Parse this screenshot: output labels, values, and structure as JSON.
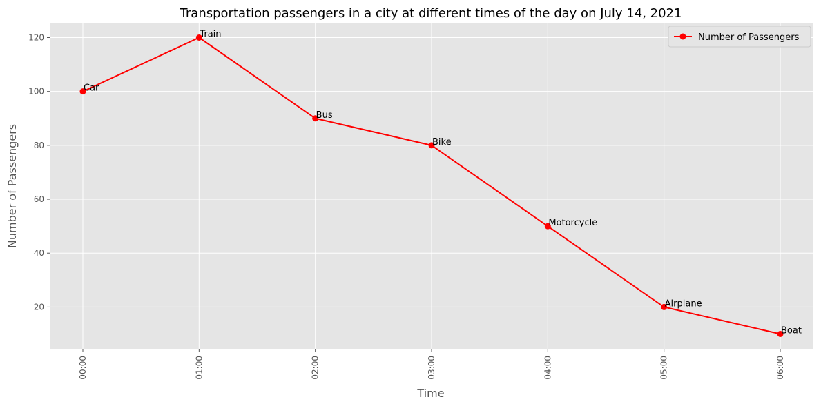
{
  "chart_data": {
    "type": "line",
    "title": "Transportation passengers in a city at different times of the day on July 14, 2021",
    "xlabel": "Time",
    "ylabel": "Number of Passengers",
    "categories": [
      "00:00",
      "01:00",
      "02:00",
      "03:00",
      "04:00",
      "05:00",
      "06:00"
    ],
    "series": [
      {
        "name": "Number of Passengers",
        "values": [
          100,
          120,
          90,
          80,
          50,
          20,
          10
        ],
        "color": "#ff0000",
        "marker": "circle"
      }
    ],
    "point_labels": [
      "Car",
      "Train",
      "Bus",
      "Bike",
      "Motorcycle",
      "Airplane",
      "Boat"
    ],
    "ylim": [
      4.5,
      125.5
    ],
    "yticks": [
      20,
      40,
      60,
      80,
      100,
      120
    ],
    "grid": true,
    "legend_position": "top-right",
    "x_tick_rotation": "vertical"
  },
  "colors": {
    "plot_background": "#e5e5e5",
    "grid": "#ffffff",
    "line": "#ff0000"
  }
}
